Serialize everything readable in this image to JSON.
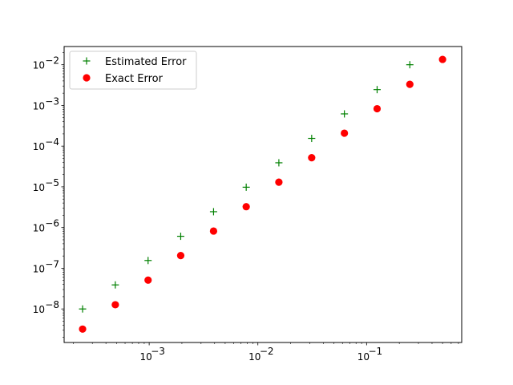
{
  "chart_data": {
    "type": "scatter",
    "x_scale": "log",
    "y_scale": "log",
    "xlim": [
      0.000165,
      0.75
    ],
    "ylim": [
      1.5e-09,
      0.028
    ],
    "x_major_ticks": [
      0.001,
      0.01,
      0.1
    ],
    "x_tick_labels": [
      "10",
      "10",
      "10"
    ],
    "x_tick_exponents": [
      "−3",
      "−2",
      "−1"
    ],
    "y_major_ticks": [
      1e-08,
      1e-07,
      1e-06,
      1e-05,
      0.0001,
      0.001,
      0.01
    ],
    "y_tick_labels": [
      "10",
      "10",
      "10",
      "10",
      "10",
      "10",
      "10"
    ],
    "y_tick_exponents": [
      "−8",
      "−7",
      "−6",
      "−5",
      "−4",
      "−3",
      "−2"
    ],
    "grid": false,
    "legend_position": "top-left",
    "series": [
      {
        "name": "Estimated Error",
        "marker": "plus",
        "color": "#008000",
        "x": [
          0.000244,
          0.000488,
          0.000977,
          0.00195,
          0.00391,
          0.00781,
          0.0156,
          0.03125,
          0.0625,
          0.125,
          0.25
        ],
        "y": [
          1e-08,
          3.9e-08,
          1.55e-07,
          6.1e-07,
          2.45e-06,
          9.8e-06,
          3.9e-05,
          0.000155,
          0.00062,
          0.00245,
          0.01
        ]
      },
      {
        "name": "Exact Error",
        "marker": "circle",
        "color": "#ff0000",
        "x": [
          0.000244,
          0.000488,
          0.000977,
          0.00195,
          0.00391,
          0.00781,
          0.0156,
          0.03125,
          0.0625,
          0.125,
          0.25,
          0.5
        ],
        "y": [
          3.2e-09,
          1.27e-08,
          5.1e-08,
          2.05e-07,
          8.2e-07,
          3.25e-06,
          1.3e-05,
          5.2e-05,
          0.000208,
          0.00083,
          0.0033,
          0.0135
        ]
      }
    ]
  }
}
